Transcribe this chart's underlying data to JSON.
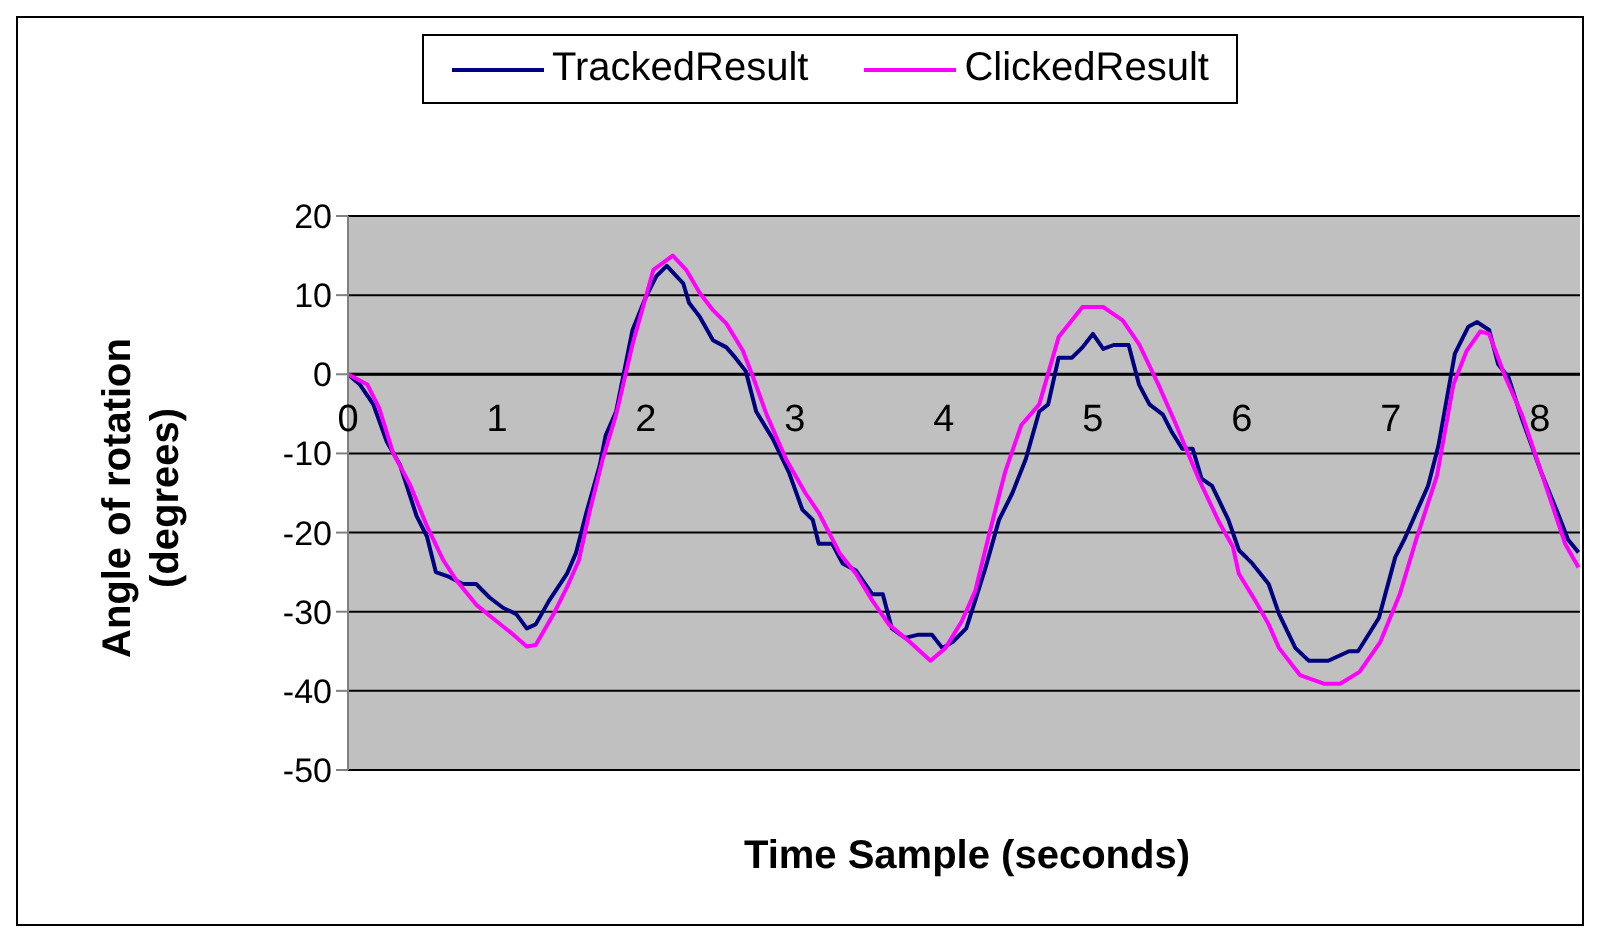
{
  "chart_data": {
    "type": "line",
    "xlabel": "Time Sample (seconds)",
    "ylabel": "Angle of rotation (degrees)",
    "xlim": [
      0,
      8.27
    ],
    "xticks": [
      0,
      1,
      2,
      3,
      4,
      5,
      6,
      7,
      8
    ],
    "ylim": [
      -50,
      20
    ],
    "yticks": [
      -50,
      -40,
      -30,
      -20,
      -10,
      0,
      10,
      20
    ],
    "grid": "y",
    "legend": "top",
    "marker": "none",
    "line_style": "solid",
    "series": [
      {
        "name": "TrackedResult",
        "color": "#000080",
        "x": [
          0,
          0.08,
          0.17,
          0.26,
          0.35,
          0.46,
          0.53,
          0.59,
          0.68,
          0.77,
          0.86,
          0.95,
          1.04,
          1.13,
          1.2,
          1.26,
          1.35,
          1.47,
          1.53,
          1.6,
          1.69,
          1.73,
          1.8,
          1.91,
          2.0,
          2.07,
          2.14,
          2.25,
          2.29,
          2.36,
          2.45,
          2.54,
          2.6,
          2.67,
          2.74,
          2.85,
          2.96,
          3.05,
          3.12,
          3.16,
          3.25,
          3.32,
          3.41,
          3.52,
          3.59,
          3.65,
          3.74,
          3.83,
          3.92,
          3.99,
          4.06,
          4.15,
          4.21,
          4.28,
          4.37,
          4.46,
          4.55,
          4.64,
          4.7,
          4.77,
          4.86,
          4.93,
          5.0,
          5.07,
          5.14,
          5.24,
          5.31,
          5.38,
          5.47,
          5.53,
          5.6,
          5.67,
          5.73,
          5.8,
          5.91,
          5.98,
          6.07,
          6.18,
          6.25,
          6.36,
          6.45,
          6.58,
          6.72,
          6.78,
          6.92,
          7.03,
          7.09,
          7.25,
          7.32,
          7.43,
          7.52,
          7.58,
          7.66,
          7.72,
          7.79,
          7.88,
          8.01,
          8.12,
          8.19,
          8.26
        ],
        "values": [
          0,
          -1.3,
          -3.8,
          -8.5,
          -11.5,
          -17.9,
          -20.5,
          -25,
          -25.6,
          -26.5,
          -26.5,
          -28.2,
          -29.5,
          -30.3,
          -32.1,
          -31.6,
          -28.6,
          -25.2,
          -22.6,
          -17.5,
          -11.5,
          -7.7,
          -4.7,
          5.6,
          9.8,
          12.4,
          13.7,
          11.5,
          9,
          7.3,
          4.3,
          3.4,
          2.1,
          0.4,
          -4.7,
          -8.1,
          -12.4,
          -17.1,
          -18.4,
          -21.4,
          -21.4,
          -23.9,
          -24.8,
          -27.8,
          -27.8,
          -32.1,
          -33.3,
          -32.9,
          -32.9,
          -34.6,
          -33.8,
          -32.1,
          -28.6,
          -24.4,
          -18.4,
          -15,
          -10.7,
          -4.7,
          -3.8,
          2.1,
          2.1,
          3.4,
          5.1,
          3.2,
          3.7,
          3.7,
          -1.3,
          -3.8,
          -5.1,
          -7.3,
          -9.4,
          -9.4,
          -13.2,
          -14.1,
          -18.4,
          -22.2,
          -23.9,
          -26.5,
          -30.3,
          -34.6,
          -36.2,
          -36.2,
          -35,
          -35,
          -30.8,
          -23.1,
          -20.9,
          -14.1,
          -9,
          2.6,
          6,
          6.6,
          5.6,
          1.3,
          -0.4,
          -5.6,
          -12.4,
          -17.5,
          -20.9,
          -22.5
        ]
      },
      {
        "name": "ClickedResult",
        "color": "#ff00ff",
        "x": [
          0,
          0.13,
          0.21,
          0.3,
          0.42,
          0.53,
          0.64,
          0.73,
          0.86,
          0.97,
          1.11,
          1.2,
          1.26,
          1.38,
          1.47,
          1.55,
          1.62,
          1.71,
          1.8,
          1.91,
          2.05,
          2.18,
          2.27,
          2.36,
          2.45,
          2.54,
          2.65,
          2.72,
          2.81,
          2.94,
          3.07,
          3.16,
          3.3,
          3.41,
          3.52,
          3.63,
          3.77,
          3.91,
          4.01,
          4.12,
          4.21,
          4.3,
          4.41,
          4.52,
          4.64,
          4.77,
          4.93,
          5.07,
          5.2,
          5.31,
          5.44,
          5.55,
          5.71,
          5.85,
          5.94,
          5.98,
          6.09,
          6.18,
          6.25,
          6.39,
          6.55,
          6.66,
          6.79,
          6.93,
          7.06,
          7.17,
          7.31,
          7.42,
          7.51,
          7.6,
          7.66,
          7.77,
          7.88,
          8.01,
          8.17,
          8.26
        ],
        "values": [
          0,
          -1.3,
          -4.3,
          -9.8,
          -14.1,
          -19.2,
          -23.5,
          -26.1,
          -29.1,
          -30.8,
          -32.9,
          -34.4,
          -34.2,
          -30.3,
          -26.9,
          -23.5,
          -17.5,
          -10.7,
          -5.1,
          3.8,
          13.2,
          15,
          13.2,
          10.3,
          8.1,
          6.4,
          3,
          -0.4,
          -5.1,
          -10.7,
          -15,
          -17.5,
          -22.6,
          -25.2,
          -28.6,
          -31.6,
          -33.8,
          -36.2,
          -34.6,
          -31.2,
          -27.4,
          -20.5,
          -12.4,
          -6.4,
          -3.8,
          4.7,
          8.5,
          8.5,
          6.8,
          3.8,
          -1.3,
          -6,
          -13.2,
          -18.8,
          -21.8,
          -25.2,
          -28.6,
          -31.6,
          -34.6,
          -38,
          -39.1,
          -39.1,
          -37.6,
          -33.8,
          -27.8,
          -20.9,
          -12.8,
          -1.3,
          3,
          5.4,
          5.1,
          -0.4,
          -5.1,
          -12.4,
          -21.4,
          -24.4
        ]
      }
    ]
  }
}
